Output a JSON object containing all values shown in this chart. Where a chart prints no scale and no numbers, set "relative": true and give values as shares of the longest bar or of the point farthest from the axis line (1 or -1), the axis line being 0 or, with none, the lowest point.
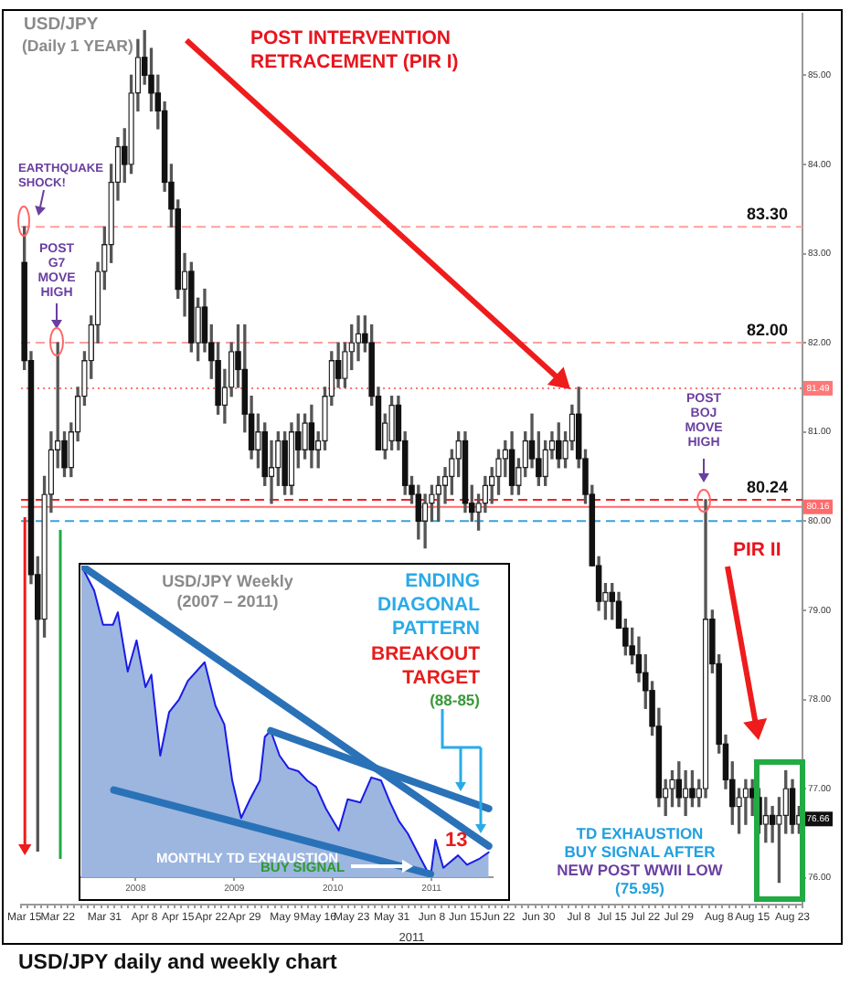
{
  "chart_data": [
    {
      "type": "candlestick",
      "title": "USD/JPY",
      "subtitle": "(Daily 1 YEAR)",
      "xlabel": "2011",
      "categories": [
        "Mar 15",
        null,
        null,
        null,
        null,
        "Mar 22",
        null,
        null,
        null,
        null,
        null,
        null,
        "Mar 31",
        null,
        null,
        null,
        null,
        null,
        "Apr 8",
        null,
        null,
        null,
        null,
        "Apr 15",
        null,
        null,
        null,
        null,
        "Apr 22",
        null,
        null,
        null,
        null,
        "Apr 29",
        null,
        null,
        null,
        null,
        null,
        "May 9",
        null,
        null,
        null,
        null,
        "May 16",
        null,
        null,
        null,
        null,
        "May 23",
        null,
        null,
        null,
        null,
        null,
        "May 31",
        null,
        null,
        null,
        null,
        null,
        "Jun 8",
        null,
        null,
        null,
        null,
        "Jun 15",
        null,
        null,
        null,
        null,
        "Jun 22",
        null,
        null,
        null,
        null,
        null,
        "Jun 30",
        null,
        null,
        null,
        null,
        null,
        "Jul 8",
        null,
        null,
        null,
        null,
        "Jul 15",
        null,
        null,
        null,
        null,
        "Jul 22",
        null,
        null,
        null,
        null,
        "Jul 29",
        null,
        null,
        null,
        null,
        null,
        "Aug 8",
        null,
        null,
        null,
        null,
        "Aug 15",
        null,
        null,
        null,
        null,
        null,
        "Aug 23",
        null
      ],
      "ohlc": [
        [
          82.9,
          83.3,
          81.7,
          81.8
        ],
        [
          81.8,
          81.9,
          79.3,
          79.4
        ],
        [
          79.4,
          79.6,
          76.3,
          78.9
        ],
        [
          78.9,
          80.5,
          78.7,
          80.3
        ],
        [
          80.3,
          81.0,
          80.1,
          80.8
        ],
        [
          80.8,
          82.0,
          80.6,
          80.9
        ],
        [
          80.9,
          81.0,
          80.5,
          80.6
        ],
        [
          80.6,
          81.1,
          80.5,
          81.0
        ],
        [
          81.0,
          81.5,
          80.9,
          81.4
        ],
        [
          81.4,
          81.9,
          81.3,
          81.8
        ],
        [
          81.8,
          82.3,
          81.6,
          82.2
        ],
        [
          82.2,
          82.9,
          82.0,
          82.8
        ],
        [
          82.8,
          83.3,
          82.6,
          83.1
        ],
        [
          83.1,
          84.0,
          82.9,
          83.8
        ],
        [
          83.8,
          84.3,
          83.6,
          84.2
        ],
        [
          84.2,
          84.4,
          83.8,
          84.0
        ],
        [
          84.0,
          85.0,
          83.9,
          84.8
        ],
        [
          84.8,
          85.4,
          84.6,
          85.2
        ],
        [
          85.2,
          85.5,
          84.9,
          85.0
        ],
        [
          85.0,
          85.3,
          84.6,
          84.8
        ],
        [
          84.8,
          85.0,
          84.4,
          84.6
        ],
        [
          84.6,
          84.7,
          83.7,
          83.8
        ],
        [
          83.8,
          84.0,
          83.3,
          83.5
        ],
        [
          83.5,
          83.6,
          82.5,
          82.6
        ],
        [
          82.6,
          83.0,
          82.3,
          82.8
        ],
        [
          82.8,
          82.9,
          81.9,
          82.0
        ],
        [
          82.0,
          82.5,
          81.8,
          82.4
        ],
        [
          82.4,
          82.6,
          81.9,
          82.0
        ],
        [
          82.0,
          82.2,
          81.6,
          81.8
        ],
        [
          81.8,
          82.0,
          81.2,
          81.3
        ],
        [
          81.3,
          81.7,
          81.1,
          81.5
        ],
        [
          81.5,
          82.0,
          81.4,
          81.9
        ],
        [
          81.9,
          82.2,
          81.5,
          81.7
        ],
        [
          81.7,
          82.2,
          81.0,
          81.2
        ],
        [
          81.2,
          81.4,
          80.7,
          80.8
        ],
        [
          80.8,
          81.2,
          80.6,
          81.0
        ],
        [
          81.0,
          81.1,
          80.4,
          80.5
        ],
        [
          80.5,
          80.9,
          80.2,
          80.6
        ],
        [
          80.6,
          81.0,
          80.4,
          80.9
        ],
        [
          80.9,
          81.0,
          80.3,
          80.4
        ],
        [
          80.4,
          81.1,
          80.3,
          81.0
        ],
        [
          81.0,
          81.2,
          80.6,
          80.8
        ],
        [
          80.8,
          81.2,
          80.7,
          81.1
        ],
        [
          81.1,
          81.3,
          80.6,
          80.8
        ],
        [
          80.8,
          81.0,
          80.6,
          80.9
        ],
        [
          80.9,
          81.5,
          80.8,
          81.4
        ],
        [
          81.4,
          81.9,
          81.3,
          81.8
        ],
        [
          81.8,
          82.0,
          81.5,
          81.6
        ],
        [
          81.6,
          82.0,
          81.5,
          81.9
        ],
        [
          81.9,
          82.2,
          81.7,
          82.0
        ],
        [
          82.0,
          82.3,
          81.8,
          82.1
        ],
        [
          82.1,
          82.3,
          81.9,
          82.0
        ],
        [
          82.0,
          82.2,
          81.3,
          81.4
        ],
        [
          81.4,
          81.5,
          80.8,
          80.8
        ],
        [
          80.8,
          81.2,
          80.7,
          81.1
        ],
        [
          80.9,
          81.4,
          80.8,
          81.3
        ],
        [
          81.3,
          81.4,
          80.8,
          80.9
        ],
        [
          80.9,
          81.0,
          80.3,
          80.4
        ],
        [
          80.4,
          80.5,
          80.2,
          80.3
        ],
        [
          80.3,
          80.4,
          79.8,
          80.0
        ],
        [
          80.0,
          80.3,
          79.7,
          80.2
        ],
        [
          80.2,
          80.4,
          80.0,
          80.3
        ],
        [
          80.3,
          80.5,
          80.0,
          80.4
        ],
        [
          80.4,
          80.6,
          80.2,
          80.5
        ],
        [
          80.5,
          80.8,
          80.3,
          80.7
        ],
        [
          80.7,
          81.0,
          80.5,
          80.9
        ],
        [
          80.9,
          81.0,
          80.1,
          80.2
        ],
        [
          80.2,
          80.4,
          80.0,
          80.1
        ],
        [
          80.1,
          80.3,
          79.9,
          80.2
        ],
        [
          80.2,
          80.5,
          80.1,
          80.4
        ],
        [
          80.4,
          80.6,
          80.2,
          80.5
        ],
        [
          80.5,
          80.8,
          80.3,
          80.7
        ],
        [
          80.7,
          80.9,
          80.5,
          80.8
        ],
        [
          80.8,
          81.0,
          80.3,
          80.4
        ],
        [
          80.4,
          80.7,
          80.3,
          80.6
        ],
        [
          80.6,
          81.0,
          80.5,
          80.9
        ],
        [
          80.9,
          81.2,
          80.6,
          80.7
        ],
        [
          80.7,
          81.0,
          80.4,
          80.5
        ],
        [
          80.5,
          80.9,
          80.4,
          80.8
        ],
        [
          80.8,
          81.0,
          80.7,
          80.9
        ],
        [
          80.9,
          81.1,
          80.6,
          80.7
        ],
        [
          80.7,
          81.0,
          80.6,
          80.9
        ],
        [
          80.9,
          81.3,
          80.8,
          81.2
        ],
        [
          81.2,
          81.5,
          80.6,
          80.7
        ],
        [
          80.7,
          80.8,
          80.2,
          80.3
        ],
        [
          80.3,
          80.4,
          79.5,
          79.5
        ],
        [
          79.5,
          79.6,
          79.0,
          79.1
        ],
        [
          79.1,
          79.3,
          78.9,
          79.2
        ],
        [
          79.2,
          79.3,
          78.9,
          79.1
        ],
        [
          79.1,
          79.2,
          78.8,
          78.8
        ],
        [
          78.8,
          78.9,
          78.5,
          78.6
        ],
        [
          78.6,
          78.8,
          78.4,
          78.5
        ],
        [
          78.5,
          78.7,
          78.2,
          78.3
        ],
        [
          78.3,
          78.5,
          77.9,
          78.1
        ],
        [
          78.1,
          78.2,
          77.6,
          77.7
        ],
        [
          77.7,
          77.9,
          76.8,
          76.9
        ],
        [
          76.9,
          77.1,
          76.7,
          77.0
        ],
        [
          77.0,
          77.2,
          76.8,
          77.1
        ],
        [
          77.1,
          77.3,
          76.8,
          76.9
        ],
        [
          76.9,
          77.2,
          76.7,
          77.0
        ],
        [
          77.0,
          77.2,
          76.8,
          76.9
        ],
        [
          76.9,
          77.1,
          76.8,
          77.0
        ],
        [
          77.0,
          80.24,
          76.9,
          78.9
        ],
        [
          78.9,
          79.0,
          78.3,
          78.4
        ],
        [
          78.4,
          78.5,
          77.4,
          77.5
        ],
        [
          77.5,
          77.6,
          77.0,
          77.1
        ],
        [
          77.1,
          77.3,
          76.6,
          76.8
        ],
        [
          76.8,
          77.0,
          76.5,
          76.9
        ],
        [
          76.9,
          77.1,
          76.6,
          77.0
        ],
        [
          77.0,
          77.1,
          76.7,
          76.9
        ],
        [
          76.9,
          77.0,
          76.5,
          76.6
        ],
        [
          76.6,
          76.9,
          76.4,
          76.7
        ],
        [
          76.7,
          76.8,
          76.4,
          76.6
        ],
        [
          76.6,
          76.9,
          75.95,
          76.7
        ],
        [
          76.7,
          77.2,
          76.5,
          77.0
        ],
        [
          77.0,
          77.1,
          76.5,
          76.6
        ],
        [
          76.6,
          76.8,
          76.5,
          76.7
        ]
      ],
      "ylim": [
        75.7,
        85.7
      ],
      "yticks": [
        {
          "value": 76,
          "label": "76.00"
        },
        {
          "value": 77,
          "label": "77.00"
        },
        {
          "value": 78,
          "label": "78.00"
        },
        {
          "value": 79,
          "label": "79.00"
        },
        {
          "value": 80,
          "label": "80.00"
        },
        {
          "value": 81,
          "label": "81.00"
        },
        {
          "value": 82,
          "label": "82.00"
        },
        {
          "value": 83,
          "label": "83.00"
        },
        {
          "value": 84,
          "label": "84.00"
        },
        {
          "value": 85,
          "label": "85.00"
        }
      ],
      "ref_lines": [
        {
          "axis": "y",
          "value": 83.3,
          "label": "83.30",
          "color": "#ff9e9e",
          "line_style": "dashed"
        },
        {
          "axis": "y",
          "value": 82.0,
          "label": "82.00",
          "color": "#ff9e9e",
          "line_style": "dashed"
        },
        {
          "axis": "y",
          "value": 81.49,
          "label": "81.49",
          "color": "#ff7777",
          "line_style": "dotted"
        },
        {
          "axis": "y",
          "value": 80.24,
          "label": "80.24",
          "color": "#ee2222",
          "line_style": "dashed"
        },
        {
          "axis": "y",
          "value": 80.16,
          "label": "80.16",
          "color": "#ff6b6b",
          "line_style": "solid"
        },
        {
          "axis": "y",
          "value": 80.0,
          "color": "#3aa0dd",
          "line_style": "dashed"
        }
      ],
      "annotations": [
        "POST INTERVENTION\nRETRACEMENT (PIR I)",
        "EARTHQUAKE\nSHOCK!",
        "POST\nG7\nMOVE\nHIGH",
        "POST\nBOJ\nMOVE\nHIGH",
        "PIR II",
        "TD EXHAUSTION\nBUY SIGNAL AFTER\nNEW POST WWII LOW\n(75.95)",
        "USD/JPY daily and weekly chart",
        {
          "text": "76.66",
          "y": 76.66
        }
      ]
    },
    {
      "type": "line",
      "title": "USD/JPY Weekly",
      "subtitle": "(2007 – 2011)",
      "relative": true,
      "xlim": [
        2007.45,
        2011.62
      ],
      "xticks": [
        2008,
        2009,
        2010,
        2011
      ],
      "annotations": [
        "ENDING\nDIAGONAL\nPATTERN",
        "BREAKOUT\nTARGET",
        "(88-85)",
        "MONTHLY TD EXHAUSTION",
        "BUY SIGNAL",
        "13"
      ],
      "series": [
        {
          "type": "area",
          "color": "#1a1ae6",
          "x": [
            2007.45,
            2007.58,
            2007.67,
            2007.77,
            2007.82,
            2007.92,
            2008.01,
            2008.1,
            2008.16,
            2008.25,
            2008.34,
            2008.44,
            2008.53,
            2008.7,
            2008.81,
            2008.9,
            2008.98,
            2009.07,
            2009.16,
            2009.26,
            2009.31,
            2009.37,
            2009.46,
            2009.55,
            2009.65,
            2009.74,
            2009.83,
            2009.93,
            2010.06,
            2010.15,
            2010.28,
            2010.39,
            2010.49,
            2010.58,
            2010.67,
            2010.76,
            2010.89,
            2010.99,
            2011.04,
            2011.12,
            2011.27,
            2011.36,
            2011.49,
            2011.58
          ],
          "values": [
            1.0,
            0.92,
            0.81,
            0.81,
            0.85,
            0.66,
            0.76,
            0.61,
            0.65,
            0.39,
            0.53,
            0.57,
            0.63,
            0.69,
            0.55,
            0.49,
            0.31,
            0.19,
            0.25,
            0.31,
            0.45,
            0.47,
            0.39,
            0.35,
            0.34,
            0.31,
            0.29,
            0.22,
            0.15,
            0.25,
            0.24,
            0.32,
            0.31,
            0.24,
            0.18,
            0.14,
            0.06,
            0,
            0.12,
            0.03,
            0.07,
            0.04,
            0.06,
            0.08
          ]
        },
        {
          "type": "line",
          "color": "#2a72b8",
          "x": [
            2007.45,
            2011.58
          ],
          "values": [
            1.0,
            0.1
          ]
        },
        {
          "type": "line",
          "color": "#2a72b8",
          "x": [
            2009.37,
            2011.58
          ],
          "values": [
            0.47,
            0.22
          ]
        },
        {
          "type": "line",
          "color": "#2a72b8",
          "x": [
            2007.78,
            2010.99
          ],
          "values": [
            0.28,
            0.01
          ]
        }
      ]
    }
  ]
}
